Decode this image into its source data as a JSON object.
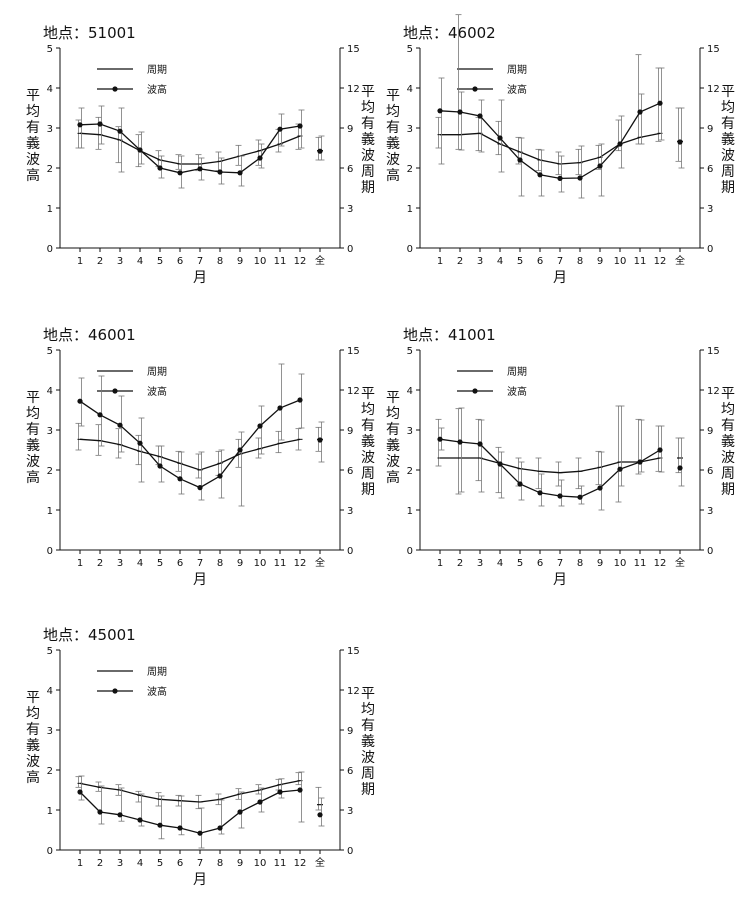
{
  "x_categories": [
    "1",
    "2",
    "3",
    "4",
    "5",
    "6",
    "7",
    "8",
    "9",
    "10",
    "11",
    "12",
    "全"
  ],
  "xlabel": "月",
  "ylabel_left": "平均有義波高",
  "ylabel_right": "平均有義波周期",
  "legend": {
    "period": "周期",
    "height": "波高"
  },
  "colors": {
    "line": "#111111",
    "errorbar": "#777777"
  },
  "chart_data": [
    {
      "type": "line",
      "title": "地点：51001",
      "ylim_left": [
        0,
        5
      ],
      "ylim_right": [
        0,
        15
      ],
      "yticks_left": [
        "0",
        "1",
        "2",
        "3",
        "4",
        "5"
      ],
      "yticks_right": [
        "0",
        "3",
        "6",
        "9",
        "12",
        "15"
      ],
      "series": [
        {
          "name": "周期",
          "axis": "right",
          "values": [
            8.6,
            8.5,
            8.1,
            7.3,
            6.6,
            6.3,
            6.3,
            6.5,
            6.9,
            7.3,
            7.8,
            8.4
          ],
          "overall": 7.3,
          "errors": [
            [
              7.5,
              9.6
            ],
            [
              7.4,
              9.8
            ],
            [
              6.4,
              9.1
            ],
            [
              6.1,
              8.5
            ],
            [
              6.1,
              7.3
            ],
            [
              5.9,
              7.0
            ],
            [
              5.8,
              7.0
            ],
            [
              5.8,
              7.2
            ],
            [
              6.2,
              7.7
            ],
            [
              6.2,
              8.1
            ],
            [
              7.2,
              8.9
            ],
            [
              7.4,
              9.3
            ]
          ],
          "overall_error": [
            6.6,
            8.3
          ]
        },
        {
          "name": "波高",
          "axis": "left",
          "values": [
            3.08,
            3.1,
            2.92,
            2.45,
            2.0,
            1.88,
            1.98,
            1.9,
            1.88,
            2.25,
            2.97,
            3.05
          ],
          "overall": 2.42,
          "errors": [
            [
              2.5,
              3.5
            ],
            [
              2.6,
              3.55
            ],
            [
              1.9,
              3.5
            ],
            [
              2.1,
              2.9
            ],
            [
              1.75,
              2.3
            ],
            [
              1.5,
              2.3
            ],
            [
              1.7,
              2.25
            ],
            [
              1.6,
              2.25
            ],
            [
              1.55,
              2.3
            ],
            [
              2.0,
              2.6
            ],
            [
              2.55,
              3.35
            ],
            [
              2.5,
              3.45
            ]
          ],
          "overall_error": [
            2.2,
            2.8
          ]
        }
      ]
    },
    {
      "type": "line",
      "title": "地点：46002",
      "ylim_left": [
        0,
        5
      ],
      "ylim_right": [
        0,
        15
      ],
      "yticks_left": [
        "0",
        "1",
        "2",
        "3",
        "4",
        "5"
      ],
      "yticks_right": [
        "0",
        "3",
        "6",
        "9",
        "12",
        "15"
      ],
      "series": [
        {
          "name": "周期",
          "axis": "right",
          "values": [
            8.5,
            8.5,
            8.6,
            7.8,
            7.2,
            6.6,
            6.3,
            6.4,
            6.8,
            7.8,
            8.3,
            8.6
          ],
          "overall": 8.0,
          "errors": [
            [
              7.5,
              9.8
            ],
            [
              7.4,
              17.5
            ],
            [
              7.3,
              9.8
            ],
            [
              7.0,
              9.5
            ],
            [
              6.3,
              8.3
            ],
            [
              5.8,
              7.4
            ],
            [
              5.5,
              7.2
            ],
            [
              5.5,
              7.4
            ],
            [
              5.9,
              7.7
            ],
            [
              7.3,
              9.6
            ],
            [
              7.8,
              14.5
            ],
            [
              8.0,
              13.5
            ]
          ],
          "overall_error": [
            6.5,
            10.5
          ]
        },
        {
          "name": "波高",
          "axis": "left",
          "values": [
            3.43,
            3.4,
            3.3,
            2.75,
            2.2,
            1.83,
            1.74,
            1.75,
            2.05,
            2.6,
            3.4,
            3.62
          ],
          "overall": 2.65,
          "errors": [
            [
              2.1,
              4.25
            ],
            [
              2.45,
              3.9
            ],
            [
              2.4,
              3.7
            ],
            [
              1.9,
              3.7
            ],
            [
              1.3,
              2.75
            ],
            [
              1.3,
              2.45
            ],
            [
              1.4,
              2.3
            ],
            [
              1.25,
              2.55
            ],
            [
              1.3,
              2.6
            ],
            [
              2.0,
              3.3
            ],
            [
              2.6,
              3.85
            ],
            [
              2.7,
              4.5
            ]
          ],
          "overall_error": [
            2.0,
            3.5
          ]
        }
      ]
    },
    {
      "type": "line",
      "title": "地点：46001",
      "ylim_left": [
        0,
        5
      ],
      "ylim_right": [
        0,
        15
      ],
      "yticks_left": [
        "0",
        "1",
        "2",
        "3",
        "4",
        "5"
      ],
      "yticks_right": [
        "0",
        "3",
        "6",
        "9",
        "12",
        "15"
      ],
      "series": [
        {
          "name": "周期",
          "axis": "right",
          "values": [
            8.3,
            8.2,
            7.9,
            7.4,
            7.0,
            6.5,
            6.0,
            6.5,
            7.2,
            7.6,
            8.0,
            8.3
          ],
          "overall": 8.3,
          "errors": [
            [
              7.5,
              9.5
            ],
            [
              7.1,
              9.4
            ],
            [
              6.9,
              9.1
            ],
            [
              6.4,
              8.6
            ],
            [
              6.4,
              7.8
            ],
            [
              5.9,
              7.4
            ],
            [
              5.4,
              7.2
            ],
            [
              5.6,
              7.4
            ],
            [
              6.2,
              8.3
            ],
            [
              6.9,
              8.4
            ],
            [
              7.3,
              8.9
            ],
            [
              7.5,
              9.1
            ]
          ],
          "overall_error": [
            7.4,
            9.2
          ]
        },
        {
          "name": "波高",
          "axis": "left",
          "values": [
            3.72,
            3.38,
            3.12,
            2.67,
            2.1,
            1.78,
            1.56,
            1.85,
            2.5,
            3.1,
            3.55,
            3.75
          ],
          "overall": 2.75,
          "errors": [
            [
              3.1,
              4.3
            ],
            [
              2.6,
              4.35
            ],
            [
              2.45,
              3.85
            ],
            [
              1.7,
              3.3
            ],
            [
              1.7,
              2.6
            ],
            [
              1.4,
              2.45
            ],
            [
              1.25,
              2.45
            ],
            [
              1.3,
              2.5
            ],
            [
              1.1,
              2.95
            ],
            [
              2.4,
              3.6
            ],
            [
              2.75,
              4.65
            ],
            [
              3.05,
              4.4
            ]
          ],
          "overall_error": [
            2.2,
            3.2
          ]
        }
      ]
    },
    {
      "type": "line",
      "title": "地点：41001",
      "ylim_left": [
        0,
        5
      ],
      "ylim_right": [
        0,
        15
      ],
      "yticks_left": [
        "0",
        "1",
        "2",
        "3",
        "4",
        "5"
      ],
      "yticks_right": [
        "0",
        "3",
        "6",
        "9",
        "12",
        "15"
      ],
      "series": [
        {
          "name": "周期",
          "axis": "right",
          "values": [
            6.9,
            6.9,
            6.9,
            6.5,
            6.1,
            5.9,
            5.8,
            5.9,
            6.2,
            6.6,
            6.6,
            6.9
          ],
          "overall": 6.9,
          "errors": [
            [
              6.3,
              9.8
            ],
            [
              4.2,
              10.6
            ],
            [
              5.2,
              9.8
            ],
            [
              4.3,
              7.7
            ],
            [
              4.8,
              6.9
            ],
            [
              4.6,
              6.9
            ],
            [
              4.8,
              6.6
            ],
            [
              4.6,
              6.9
            ],
            [
              4.9,
              7.4
            ],
            [
              3.6,
              10.8
            ],
            [
              5.7,
              9.8
            ],
            [
              5.9,
              9.3
            ]
          ],
          "overall_error": [
            5.8,
            8.4
          ]
        },
        {
          "name": "波高",
          "axis": "left",
          "values": [
            2.77,
            2.7,
            2.65,
            2.15,
            1.65,
            1.43,
            1.35,
            1.32,
            1.55,
            2.02,
            2.2,
            2.5
          ],
          "overall": 2.05,
          "errors": [
            [
              2.5,
              3.05
            ],
            [
              1.45,
              3.55
            ],
            [
              1.45,
              3.25
            ],
            [
              1.3,
              2.45
            ],
            [
              1.25,
              2.2
            ],
            [
              1.1,
              1.9
            ],
            [
              1.1,
              1.75
            ],
            [
              1.15,
              1.6
            ],
            [
              1.0,
              2.45
            ],
            [
              1.6,
              3.6
            ],
            [
              1.95,
              3.25
            ],
            [
              1.95,
              3.1
            ]
          ],
          "overall_error": [
            1.6,
            2.8
          ]
        }
      ]
    },
    {
      "type": "line",
      "title": "地点：45001",
      "ylim_left": [
        0,
        5
      ],
      "ylim_right": [
        0,
        15
      ],
      "yticks_left": [
        "0",
        "1",
        "2",
        "3",
        "4",
        "5"
      ],
      "yticks_right": [
        "0",
        "3",
        "6",
        "9",
        "12",
        "15"
      ],
      "series": [
        {
          "name": "周期",
          "axis": "right",
          "values": [
            5.0,
            4.7,
            4.5,
            4.1,
            3.8,
            3.7,
            3.6,
            3.8,
            4.2,
            4.5,
            4.9,
            5.2
          ],
          "overall": 3.4,
          "errors": [
            [
              4.7,
              5.5
            ],
            [
              4.4,
              5.1
            ],
            [
              4.1,
              4.9
            ],
            [
              3.6,
              4.4
            ],
            [
              3.3,
              4.3
            ],
            [
              3.3,
              4.1
            ],
            [
              3.1,
              4.1
            ],
            [
              3.4,
              4.2
            ],
            [
              3.8,
              4.6
            ],
            [
              4.2,
              4.9
            ],
            [
              4.5,
              5.3
            ],
            [
              4.9,
              5.8
            ]
          ],
          "overall_error": [
            3.0,
            4.7
          ]
        },
        {
          "name": "波高",
          "axis": "left",
          "values": [
            1.45,
            0.95,
            0.88,
            0.75,
            0.62,
            0.55,
            0.42,
            0.55,
            0.95,
            1.2,
            1.45,
            1.5
          ],
          "overall": 0.88,
          "errors": [
            [
              1.25,
              1.85
            ],
            [
              0.65,
              1.6
            ],
            [
              0.72,
              1.55
            ],
            [
              0.6,
              1.4
            ],
            [
              0.28,
              1.35
            ],
            [
              0.38,
              1.35
            ],
            [
              0.05,
              1.05
            ],
            [
              0.4,
              1.25
            ],
            [
              0.55,
              1.45
            ],
            [
              0.95,
              1.55
            ],
            [
              1.3,
              1.78
            ],
            [
              0.7,
              1.95
            ]
          ],
          "overall_error": [
            0.6,
            1.3
          ]
        }
      ]
    }
  ]
}
